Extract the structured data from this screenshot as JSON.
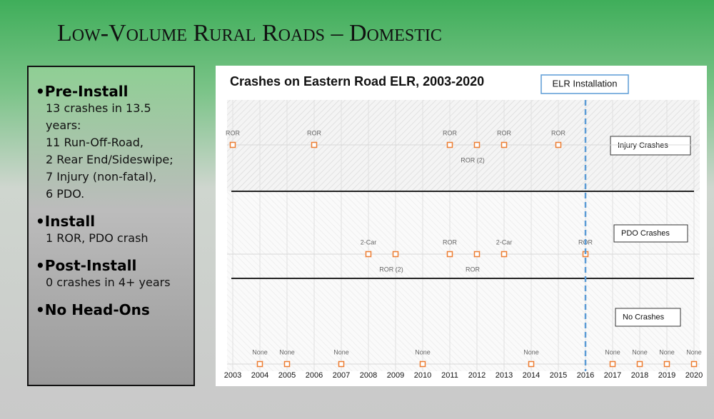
{
  "slide": {
    "title": "Low-Volume Rural Roads – Domestic",
    "bullets": [
      {
        "heading": "•Pre-Install",
        "lines": [
          "13 crashes in 13.5",
          "years:",
          "11 Run-Off-Road,",
          "2 Rear End/Sideswipe;",
          "7 Injury (non-fatal),",
          "6 PDO."
        ]
      },
      {
        "heading": "•Install",
        "lines": [
          "1 ROR, PDO crash"
        ]
      },
      {
        "heading": "•Post-Install",
        "lines": [
          "0 crashes in 4+ years"
        ]
      },
      {
        "heading": "•No Head-Ons",
        "lines": []
      }
    ]
  },
  "chart": {
    "title": "Crashes on Eastern Road ELR, 2003-2020",
    "marker_label": "ELR Installation",
    "marker_at": "2016",
    "marker_color": "#5b9bd5",
    "point_color": "#ed7d31",
    "categories": [
      "2003",
      "2004",
      "2005",
      "2006",
      "2007",
      "2008",
      "2009",
      "2010",
      "2011",
      "2012",
      "2013",
      "2014",
      "2015",
      "2016",
      "2017",
      "2018",
      "2019",
      "2020"
    ],
    "rows": [
      {
        "name": "Injury Crashes",
        "points": [
          {
            "x": "2003",
            "label": "ROR"
          },
          {
            "x": "2006",
            "label": "ROR"
          },
          {
            "x": "2011",
            "label": "ROR"
          },
          {
            "x": "2012",
            "label": "ROR (2)",
            "label_position": "below"
          },
          {
            "x": "2013",
            "label": "ROR"
          },
          {
            "x": "2015",
            "label": "ROR"
          }
        ]
      },
      {
        "name": "PDO Crashes",
        "points": [
          {
            "x": "2008",
            "label": "2-Car"
          },
          {
            "x": "2009",
            "label": "ROR (2)",
            "label_position": "below"
          },
          {
            "x": "2011",
            "label": "ROR"
          },
          {
            "x": "2012",
            "label": "ROR",
            "label_position": "below"
          },
          {
            "x": "2013",
            "label": "2-Car"
          },
          {
            "x": "2016",
            "label": "ROR"
          }
        ]
      },
      {
        "name": "No Crashes",
        "points": [
          {
            "x": "2004",
            "label": "None"
          },
          {
            "x": "2005",
            "label": "None"
          },
          {
            "x": "2007",
            "label": "None"
          },
          {
            "x": "2010",
            "label": "None"
          },
          {
            "x": "2014",
            "label": "None"
          },
          {
            "x": "2017",
            "label": "None"
          },
          {
            "x": "2018",
            "label": "None"
          },
          {
            "x": "2019",
            "label": "None"
          },
          {
            "x": "2020",
            "label": "None"
          }
        ]
      }
    ]
  }
}
